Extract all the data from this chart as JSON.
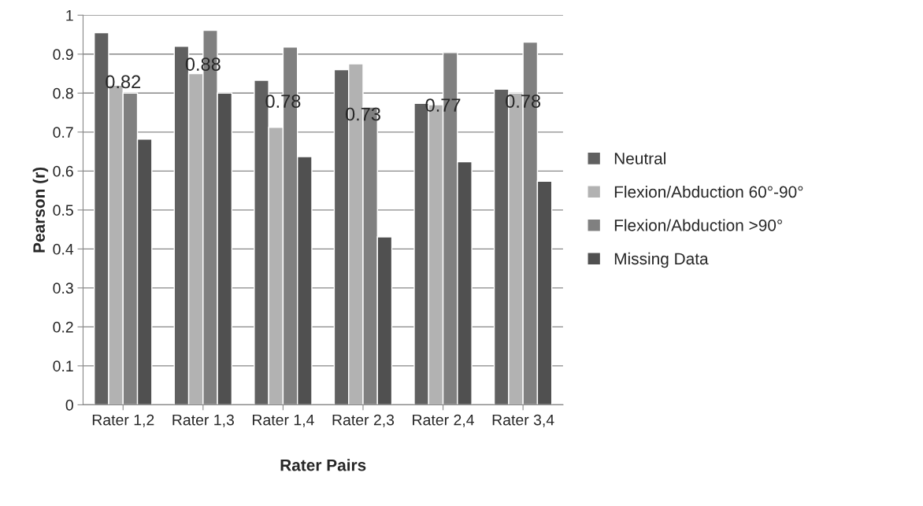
{
  "chart_data": {
    "type": "bar",
    "xlabel": "Rater Pairs",
    "ylabel": "Pearson (r)",
    "categories": [
      "Rater 1,2",
      "Rater 1,3",
      "Rater 1,4",
      "Rater 2,3",
      "Rater 2,4",
      "Rater 3,4"
    ],
    "series": [
      {
        "name": "Neutral",
        "color": "#606060",
        "values": [
          0.955,
          0.92,
          0.833,
          0.86,
          0.774,
          0.81
        ]
      },
      {
        "name": "Flexion/Abduction 60°-90°",
        "color": "#b2b2b2",
        "values": [
          0.82,
          0.85,
          0.712,
          0.875,
          0.77,
          0.8
        ]
      },
      {
        "name": "Flexion/Abduction >90°",
        "color": "#808080",
        "values": [
          0.8,
          0.961,
          0.918,
          0.764,
          0.904,
          0.931
        ]
      },
      {
        "name": "Missing Data",
        "color": "#505050",
        "values": [
          0.682,
          0.8,
          0.637,
          0.431,
          0.624,
          0.574
        ]
      }
    ],
    "annotations": [
      {
        "text": "0.82",
        "x": "Rater 1,2",
        "y": 0.825
      },
      {
        "text": "0.88",
        "x": "Rater 1,3",
        "y": 0.87
      },
      {
        "text": "0.78",
        "x": "Rater 1,4",
        "y": 0.775
      },
      {
        "text": "0.73",
        "x": "Rater 2,3",
        "y": 0.742
      },
      {
        "text": "0.77",
        "x": "Rater 2,4",
        "y": 0.765
      },
      {
        "text": "0.78",
        "x": "Rater 3,4",
        "y": 0.775
      }
    ],
    "ylim": [
      0,
      1
    ],
    "yticks": [
      0,
      0.1,
      0.2,
      0.3,
      0.4,
      0.5,
      0.6,
      0.7,
      0.8,
      0.9,
      1
    ],
    "grid": "y",
    "legend": "right"
  }
}
